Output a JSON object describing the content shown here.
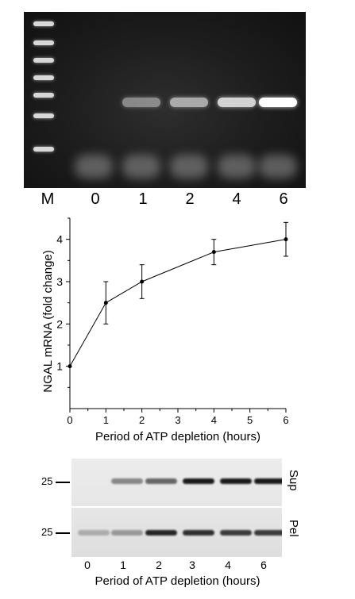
{
  "gel": {
    "lane_labels": [
      "M",
      "0",
      "1",
      "2",
      "4",
      "6"
    ],
    "band_intensity": [
      0,
      0.45,
      0.6,
      0.8,
      1.0
    ]
  },
  "chart_data": {
    "type": "line",
    "title": "",
    "xlabel": "Period of ATP depletion (hours)",
    "ylabel": "NGAL mRNA (fold change)",
    "x": [
      0,
      1,
      2,
      4,
      6
    ],
    "y": [
      1.0,
      2.5,
      3.0,
      3.7,
      4.0
    ],
    "error": [
      0,
      0.5,
      0.4,
      0.3,
      0.4
    ],
    "xlim": [
      0,
      6
    ],
    "ylim": [
      0,
      4.5
    ],
    "xticks": [
      "0",
      "1",
      "2",
      "3",
      "4",
      "5",
      "6"
    ],
    "yticks": [
      "1",
      "2",
      "3",
      "4"
    ],
    "grid": false,
    "legend": "none"
  },
  "blot": {
    "mw_label": "25",
    "sup_label": "Sup",
    "pel_label": "Pel",
    "lane_labels": [
      "0",
      "1",
      "2",
      "3",
      "4",
      "6"
    ],
    "xlabel": "Period of ATP depletion (hours)",
    "sup_intensity": [
      0,
      0.45,
      0.6,
      0.95,
      0.95,
      0.95
    ],
    "pel_intensity": [
      0.25,
      0.35,
      0.9,
      0.85,
      0.8,
      0.8
    ]
  }
}
